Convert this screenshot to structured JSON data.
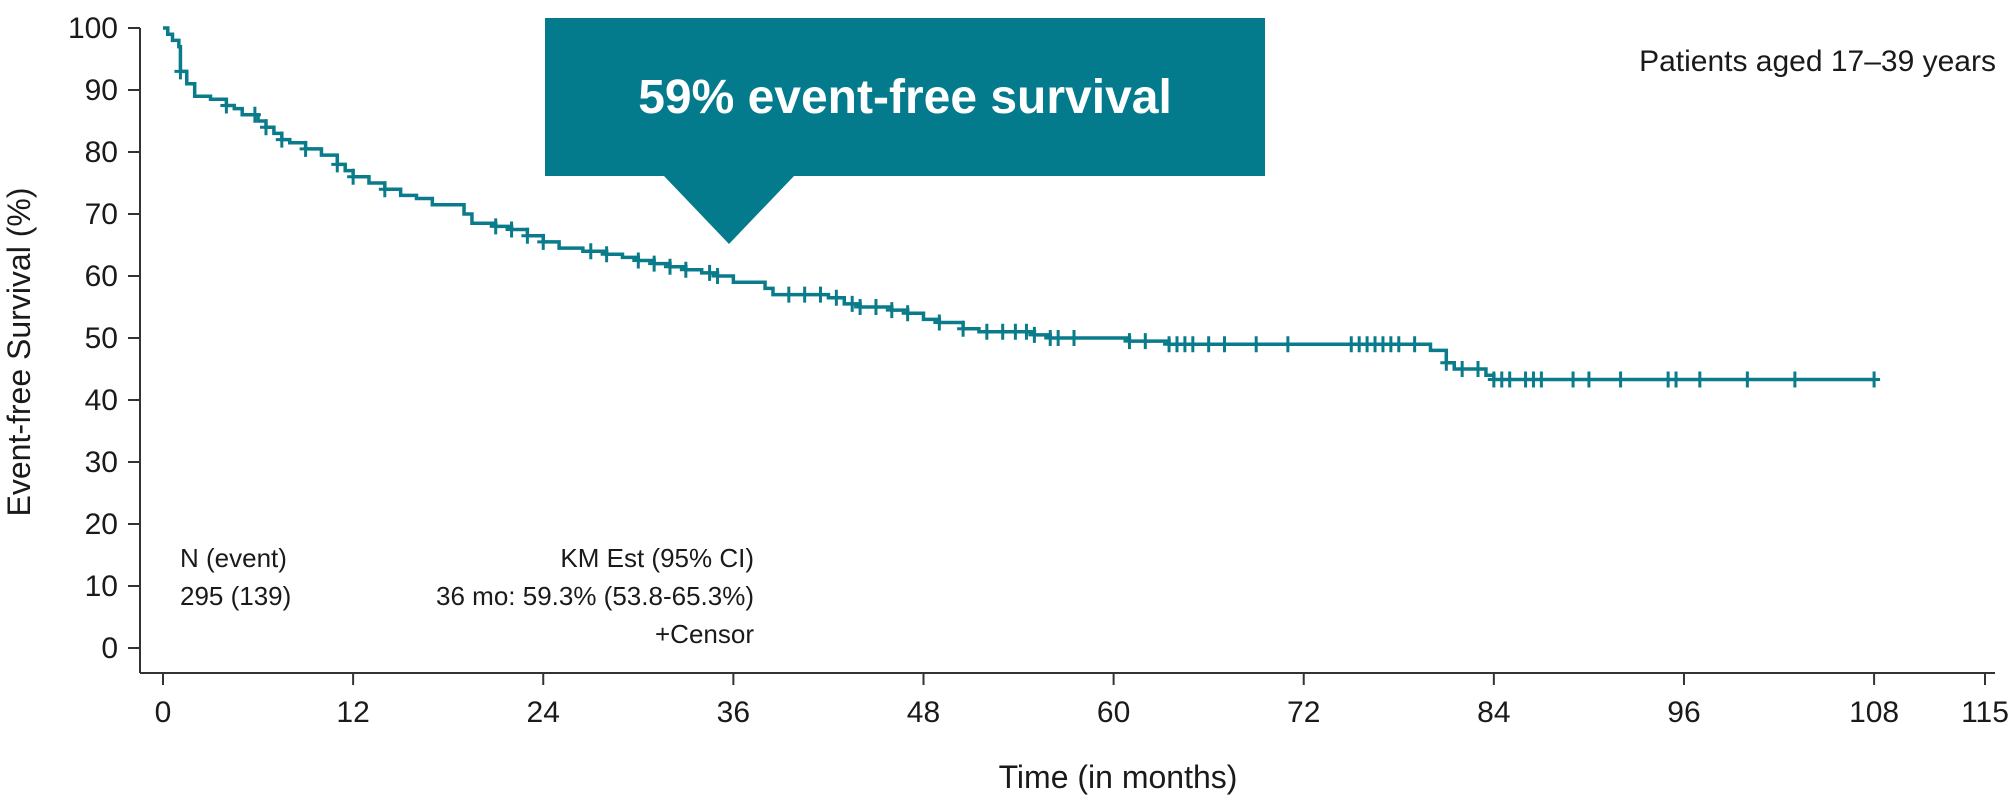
{
  "colors": {
    "curve": "#0a7b8a",
    "callout_bg": "#037b8c",
    "axis": "#333333",
    "text": "#1a1a1a"
  },
  "callout": {
    "text": "59% event-free survival"
  },
  "subtitle": "Patients aged 17–39 years",
  "legend": {
    "n_header": "N (event)",
    "n_value": "295 (139)",
    "km_header": "KM Est (95% CI)",
    "km_value": "36 mo: 59.3% (53.8-65.3%)",
    "censor_label": "+Censor"
  },
  "chart_data": {
    "type": "line",
    "subtype": "kaplan-meier step",
    "title": "",
    "xlabel": "Time (in months)",
    "ylabel": "Event-free Survival (%)",
    "xlim": [
      0,
      115
    ],
    "ylim": [
      0,
      100
    ],
    "x_ticks": [
      0,
      12,
      24,
      36,
      48,
      60,
      72,
      84,
      96,
      108,
      115
    ],
    "y_ticks": [
      0,
      10,
      20,
      30,
      40,
      50,
      60,
      70,
      80,
      90,
      100
    ],
    "grid": false,
    "series": [
      {
        "steps": [
          [
            0,
            100
          ],
          [
            0.3,
            99
          ],
          [
            0.6,
            98
          ],
          [
            1,
            97
          ],
          [
            1.1,
            93
          ],
          [
            1.5,
            91
          ],
          [
            2,
            89
          ],
          [
            3,
            88.5
          ],
          [
            4,
            87.5
          ],
          [
            4.5,
            87
          ],
          [
            5,
            86
          ],
          [
            6,
            85
          ],
          [
            6.5,
            84
          ],
          [
            7,
            83
          ],
          [
            7.5,
            82
          ],
          [
            8,
            81.5
          ],
          [
            9,
            80.5
          ],
          [
            10,
            79.5
          ],
          [
            11,
            78
          ],
          [
            11.5,
            77
          ],
          [
            12,
            76
          ],
          [
            13,
            75
          ],
          [
            14,
            74
          ],
          [
            15,
            73
          ],
          [
            16,
            72.5
          ],
          [
            17,
            71.5
          ],
          [
            19,
            70
          ],
          [
            19.5,
            68.5
          ],
          [
            21,
            68
          ],
          [
            22,
            67.5
          ],
          [
            23,
            66.5
          ],
          [
            24,
            65.5
          ],
          [
            25,
            64.5
          ],
          [
            26.5,
            64
          ],
          [
            28,
            63.5
          ],
          [
            29,
            63
          ],
          [
            30,
            62.5
          ],
          [
            31,
            62
          ],
          [
            32,
            61.5
          ],
          [
            33,
            61
          ],
          [
            34,
            60.5
          ],
          [
            35,
            60
          ],
          [
            36,
            59
          ],
          [
            38,
            58
          ],
          [
            38.5,
            57
          ],
          [
            42,
            56.5
          ],
          [
            43,
            55.5
          ],
          [
            44,
            55
          ],
          [
            46,
            54.5
          ],
          [
            47,
            54
          ],
          [
            48,
            53
          ],
          [
            49,
            52.5
          ],
          [
            50.5,
            51.5
          ],
          [
            51.5,
            51
          ],
          [
            55,
            50.5
          ],
          [
            56,
            50
          ],
          [
            61,
            49.5
          ],
          [
            63.5,
            49
          ],
          [
            80,
            48
          ],
          [
            81,
            46
          ],
          [
            81.5,
            45
          ],
          [
            83.5,
            44
          ],
          [
            84,
            43.3
          ],
          [
            108,
            43.3
          ]
        ],
        "censor_times": [
          1.1,
          4,
          5.8,
          6.5,
          7.5,
          9,
          11,
          12,
          14,
          21,
          22,
          23,
          24,
          27,
          28,
          30,
          31,
          32,
          33,
          34.5,
          35,
          39.5,
          40.5,
          41.5,
          42.5,
          43.5,
          44,
          45,
          46,
          47,
          49,
          50.5,
          52,
          53,
          53.8,
          54.5,
          55,
          56,
          56.5,
          57.5,
          61,
          62,
          63.5,
          64,
          64.5,
          65,
          66,
          67,
          69,
          71,
          75,
          75.5,
          76,
          76.5,
          77,
          77.5,
          78,
          79,
          81,
          82,
          83,
          84,
          84.5,
          85,
          86,
          86.5,
          87,
          89,
          90,
          92,
          95,
          95.5,
          97,
          100,
          103,
          108
        ]
      }
    ],
    "annotations": [
      {
        "text": "59% event-free survival",
        "x": 36,
        "y": 65
      }
    ]
  }
}
